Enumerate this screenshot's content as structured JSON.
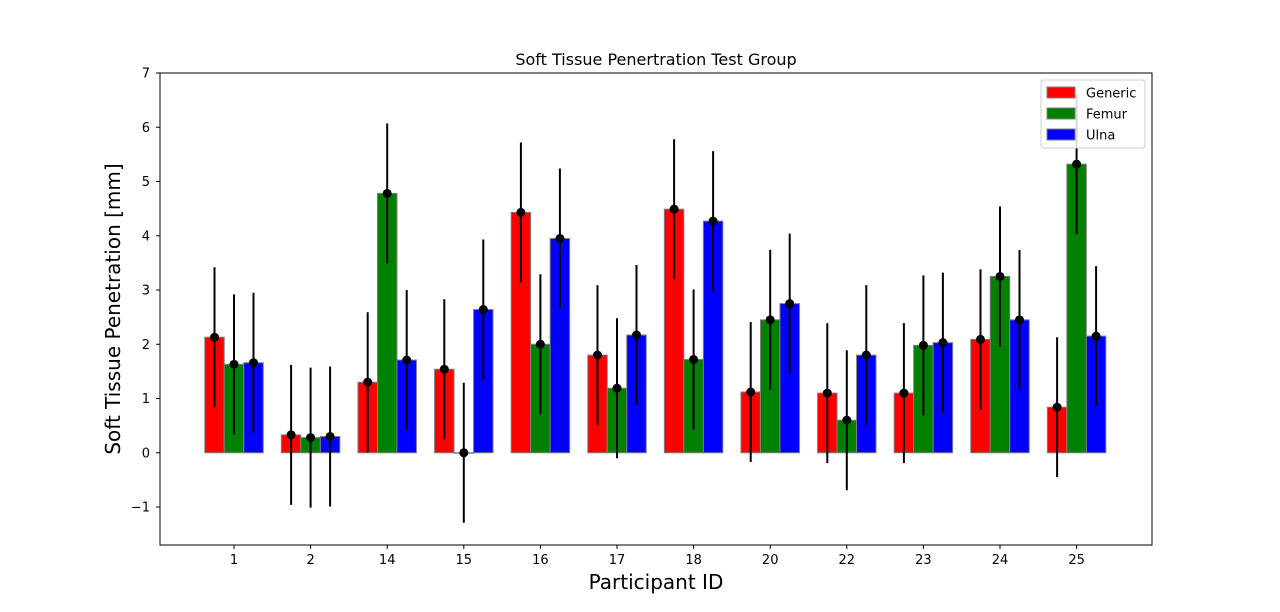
{
  "chart_data": {
    "type": "bar",
    "title": "Soft Tissue Penertration Test Group",
    "xlabel": "Participant ID",
    "ylabel": "Soft Tissue Penetration [mm]",
    "ylim": [
      -1.7,
      7.0
    ],
    "yticks": [
      -1,
      0,
      1,
      2,
      3,
      4,
      5,
      6,
      7
    ],
    "ytick_labels": [
      "−1",
      "0",
      "1",
      "2",
      "3",
      "4",
      "5",
      "6",
      "7"
    ],
    "categories": [
      "1",
      "2",
      "14",
      "15",
      "16",
      "17",
      "18",
      "20",
      "22",
      "23",
      "24",
      "25"
    ],
    "grid": false,
    "legend_position": "top-right",
    "error_bar": 1.29,
    "series": [
      {
        "name": "Generic",
        "color": "#ff0000",
        "values": [
          2.13,
          0.33,
          1.3,
          1.54,
          4.43,
          1.8,
          4.49,
          1.12,
          1.1,
          1.1,
          2.09,
          0.84
        ]
      },
      {
        "name": "Femur",
        "color": "#008000",
        "values": [
          1.63,
          0.28,
          4.78,
          0.0,
          2.0,
          1.19,
          1.72,
          2.45,
          0.6,
          1.98,
          3.25,
          5.32
        ]
      },
      {
        "name": "Ulna",
        "color": "#0000ff",
        "values": [
          1.66,
          0.3,
          1.71,
          2.64,
          3.95,
          2.17,
          4.27,
          2.75,
          1.8,
          2.03,
          2.45,
          2.15
        ]
      }
    ]
  }
}
